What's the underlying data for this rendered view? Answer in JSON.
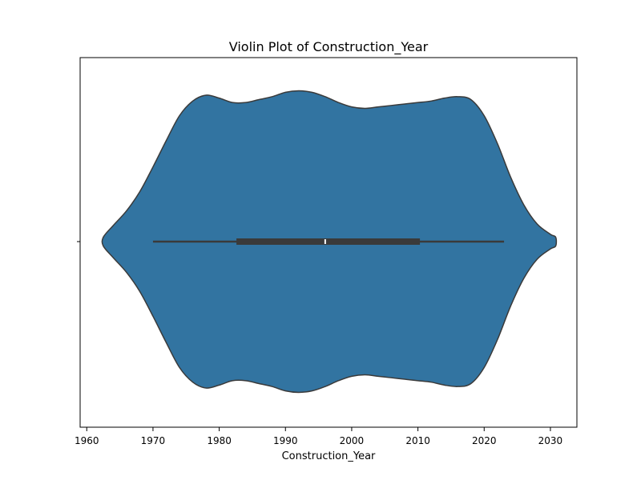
{
  "chart_data": {
    "type": "violin",
    "title": "Violin Plot of Construction_Year",
    "xlabel": "Construction_Year",
    "ylabel": "",
    "xlim": [
      1959,
      2034
    ],
    "xticks": [
      1960,
      1970,
      1980,
      1990,
      2000,
      2010,
      2020,
      2030
    ],
    "grid": false,
    "legend": "none",
    "fill_color": "#3274a1",
    "edge_color": "#3a3a3a",
    "box": {
      "whisker_low": 1970,
      "q1": 1982.6,
      "median": 1996,
      "q3": 2010.3,
      "whisker_high": 2023
    },
    "density_profile": {
      "x": [
        1962.5,
        1964,
        1966,
        1968,
        1970,
        1972,
        1974,
        1976,
        1978,
        1980,
        1982,
        1984,
        1986,
        1988,
        1990,
        1992,
        1994,
        1996,
        1998,
        2000,
        2002,
        2004,
        2006,
        2008,
        2010,
        2012,
        2014,
        2016,
        2018,
        2020,
        2022,
        2024,
        2026,
        2028,
        2030,
        2030.8
      ],
      "width": [
        0.03,
        0.11,
        0.21,
        0.34,
        0.51,
        0.69,
        0.86,
        0.96,
        1.0,
        0.98,
        0.95,
        0.95,
        0.97,
        0.99,
        1.02,
        1.03,
        1.02,
        0.99,
        0.95,
        0.92,
        0.91,
        0.92,
        0.93,
        0.94,
        0.95,
        0.96,
        0.98,
        0.99,
        0.97,
        0.86,
        0.67,
        0.44,
        0.25,
        0.12,
        0.05,
        0.03
      ]
    }
  }
}
